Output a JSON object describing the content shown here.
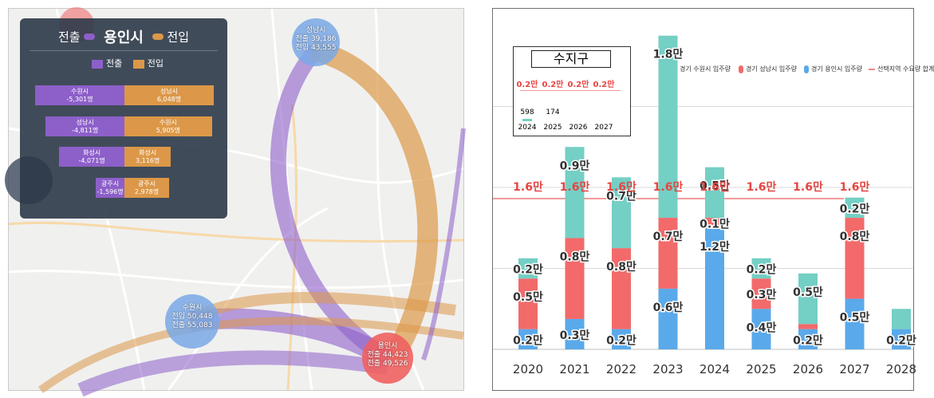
{
  "map": {
    "legend": {
      "out_label": "전출",
      "city": "용인시",
      "in_label": "전입",
      "sub_out": "전출",
      "sub_in": "전입",
      "rows": [
        {
          "out_city": "수원시",
          "out_value": "-5,301명",
          "in_city": "성남시",
          "in_value": "6,048명",
          "out_frac": 1.0,
          "in_frac": 1.0
        },
        {
          "out_city": "성남시",
          "out_value": "-4,811명",
          "in_city": "수원시",
          "in_value": "5,905명",
          "out_frac": 0.88,
          "in_frac": 0.98
        },
        {
          "out_city": "화성시",
          "out_value": "-4,071명",
          "in_city": "화성시",
          "in_value": "3,116명",
          "out_frac": 0.73,
          "in_frac": 0.52
        },
        {
          "out_city": "광주시",
          "out_value": "-1,596명",
          "in_city": "광주시",
          "in_value": "2,978명",
          "out_frac": 0.32,
          "in_frac": 0.5
        }
      ]
    },
    "cities": [
      {
        "name": "성남시",
        "line1": "전출 39,186",
        "line2": "전입 43,555",
        "color": "#7aa8e6"
      },
      {
        "name": "수원시",
        "line1": "전입 50,448",
        "line2": "전출 55,083",
        "color": "#7aa8e6"
      },
      {
        "name": "용인시",
        "line1": "전출 44,423",
        "line2": "전출 49,526",
        "color": "#ef6060"
      }
    ],
    "colors": {
      "out": "#8d5fc9",
      "in": "#dc9848",
      "bg": "#f0f0ef"
    }
  },
  "chart_data": {
    "type": "bar",
    "stacked": true,
    "categories": [
      "2020",
      "2021",
      "2022",
      "2023",
      "2024",
      "2025",
      "2026",
      "2027",
      "2028"
    ],
    "series": [
      {
        "name": "경기 용인시 입주량",
        "color": "#5aa9ea",
        "values": [
          0.2,
          0.3,
          0.2,
          0.6,
          1.2,
          0.4,
          0.2,
          0.5,
          0.2
        ],
        "labels": [
          "0.2만",
          "0.3만",
          "0.2만",
          "0.6만",
          "1.2만",
          "0.4만",
          "0.2만",
          "0.5만",
          "0.2만"
        ]
      },
      {
        "name": "경기 성남시 입주량",
        "color": "#f26a6a",
        "values": [
          0.5,
          0.8,
          0.8,
          0.7,
          0.1,
          0.3,
          0.05,
          0.8,
          0.0
        ],
        "labels": [
          "0.5만",
          "0.8만",
          "0.8만",
          "0.7만",
          "0.1만",
          "0.3만",
          "",
          "0.8만",
          ""
        ]
      },
      {
        "name": "경기 수원시 입주량",
        "color": "#74cfc4",
        "values": [
          0.2,
          0.9,
          0.7,
          1.8,
          0.5,
          0.2,
          0.5,
          0.2,
          0.2
        ],
        "labels": [
          "0.2만",
          "0.9만",
          "0.7만",
          "1.8만",
          "0.5만",
          "0.2만",
          "0.5만",
          "0.2만",
          ""
        ]
      }
    ],
    "demand": {
      "name": "선택지역 수요량 합계",
      "value": 1.6,
      "label": "1.6만",
      "color": "#e64541"
    },
    "inset": {
      "title": "수지구",
      "years": [
        "2024",
        "2025",
        "2026",
        "2027"
      ],
      "demand_labels": [
        "0.2만",
        "0.2만",
        "0.2만",
        "0.2만"
      ],
      "values": [
        "598",
        "174",
        "",
        ""
      ]
    },
    "ylim": [
      0,
      3.2
    ],
    "xlabel": "",
    "ylabel": ""
  }
}
